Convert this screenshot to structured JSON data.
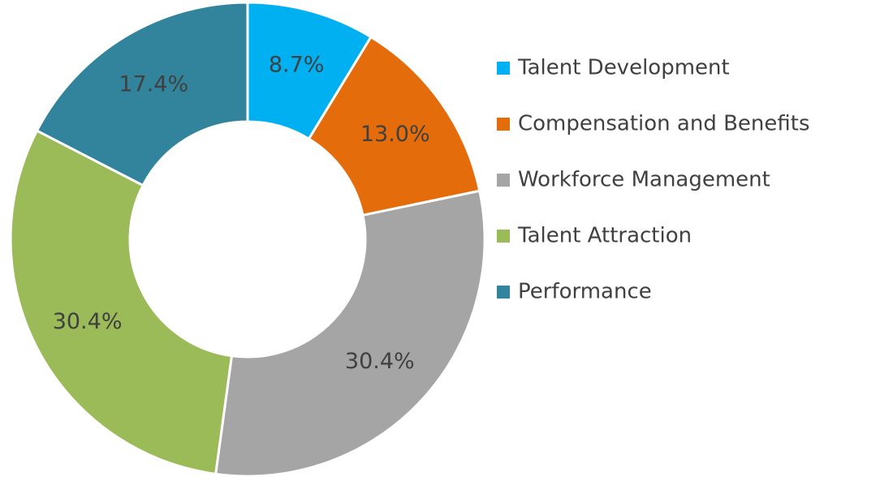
{
  "chart_data": {
    "type": "donut",
    "categories": [
      "Talent Development",
      "Compensation and Benefits",
      "Workforce Management",
      "Talent Attraction",
      "Performance"
    ],
    "values": [
      8.7,
      13.0,
      30.4,
      30.4,
      17.4
    ],
    "value_labels": [
      "8.7%",
      "13.0%",
      "30.4%",
      "30.4%",
      "17.4%"
    ],
    "colors": [
      "#00b0f0",
      "#e46c0a",
      "#a5a5a5",
      "#9bbb59",
      "#31849b"
    ],
    "legend": "right"
  }
}
